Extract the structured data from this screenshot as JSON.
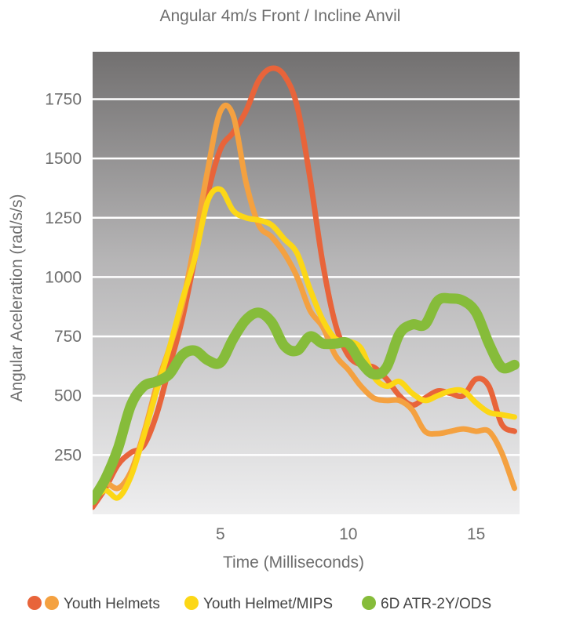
{
  "chart_data": {
    "type": "line",
    "title": "Angular 4m/s Front / Incline Anvil",
    "xlabel": "Time (Milliseconds)",
    "ylabel": "Angular Aceleration (rad/s/s)",
    "xlim": [
      0,
      16.7
    ],
    "ylim": [
      0,
      1950
    ],
    "x_ticks": [
      5,
      10,
      15
    ],
    "y_ticks": [
      250,
      500,
      750,
      1000,
      1250,
      1500,
      1750
    ],
    "grid": true,
    "legend_position": "bottom",
    "legend": [
      {
        "label": "Youth Helmets",
        "colors": [
          "#e8643a",
          "#f4a140"
        ]
      },
      {
        "label": "Youth Helmet/MIPS",
        "colors": [
          "#fcd716"
        ]
      },
      {
        "label": "6D ATR-2Y/ODS",
        "colors": [
          "#86bc3a"
        ]
      }
    ],
    "series": [
      {
        "legend_group": 0,
        "color": "#e8643a",
        "x": [
          0,
          0.5,
          1,
          1.5,
          2,
          2.5,
          3,
          3.5,
          4,
          4.5,
          5,
          5.5,
          6,
          6.5,
          7,
          7.5,
          8,
          8.5,
          9,
          9.5,
          10,
          10.5,
          11,
          11.5,
          12,
          12.5,
          13,
          13.5,
          14,
          14.5,
          15,
          15.5,
          16,
          16.5
        ],
        "values": [
          30,
          110,
          210,
          260,
          290,
          420,
          620,
          820,
          1080,
          1350,
          1540,
          1610,
          1700,
          1830,
          1880,
          1850,
          1720,
          1420,
          1060,
          800,
          670,
          630,
          620,
          570,
          500,
          460,
          490,
          520,
          510,
          500,
          570,
          540,
          380,
          350
        ]
      },
      {
        "legend_group": 0,
        "color": "#f4a140",
        "x": [
          0,
          0.5,
          1,
          1.5,
          2,
          2.5,
          3,
          3.5,
          4,
          4.5,
          5,
          5.5,
          6,
          6.5,
          7,
          7.5,
          8,
          8.5,
          9,
          9.5,
          10,
          10.5,
          11,
          11.5,
          12,
          12.5,
          13,
          13.5,
          14,
          14.5,
          15,
          15.5,
          16,
          16.5
        ],
        "values": [
          80,
          130,
          110,
          180,
          340,
          540,
          700,
          880,
          1150,
          1450,
          1700,
          1680,
          1400,
          1220,
          1170,
          1100,
          1000,
          860,
          790,
          670,
          610,
          540,
          490,
          480,
          480,
          440,
          350,
          340,
          350,
          360,
          350,
          350,
          260,
          110
        ]
      },
      {
        "legend_group": 1,
        "color": "#fcd716",
        "x": [
          0,
          0.5,
          1,
          1.5,
          2,
          2.5,
          3,
          3.5,
          4,
          4.5,
          5,
          5.5,
          6,
          6.5,
          7,
          7.5,
          8,
          8.5,
          9,
          9.5,
          10,
          10.5,
          11,
          11.5,
          12,
          12.5,
          13,
          13.5,
          14,
          14.5,
          15,
          15.5,
          16,
          16.5
        ],
        "values": [
          60,
          100,
          70,
          160,
          330,
          520,
          700,
          900,
          1080,
          1320,
          1370,
          1280,
          1250,
          1240,
          1220,
          1160,
          1100,
          950,
          820,
          740,
          730,
          700,
          580,
          540,
          560,
          510,
          480,
          500,
          520,
          520,
          470,
          430,
          420,
          410
        ]
      },
      {
        "legend_group": 2,
        "color": "#86bc3a",
        "x": [
          0,
          0.5,
          1,
          1.5,
          2,
          2.5,
          3,
          3.5,
          4,
          4.5,
          5,
          5.5,
          6,
          6.5,
          7,
          7.5,
          8,
          8.5,
          9,
          9.5,
          10,
          10.5,
          11,
          11.5,
          12,
          12.5,
          13,
          13.5,
          14,
          14.5,
          15,
          15.5,
          16,
          16.5
        ],
        "values": [
          60,
          150,
          280,
          460,
          540,
          560,
          590,
          670,
          690,
          650,
          640,
          740,
          820,
          850,
          810,
          710,
          690,
          750,
          720,
          720,
          720,
          640,
          590,
          620,
          760,
          800,
          800,
          900,
          910,
          900,
          850,
          720,
          620,
          630
        ]
      }
    ]
  }
}
